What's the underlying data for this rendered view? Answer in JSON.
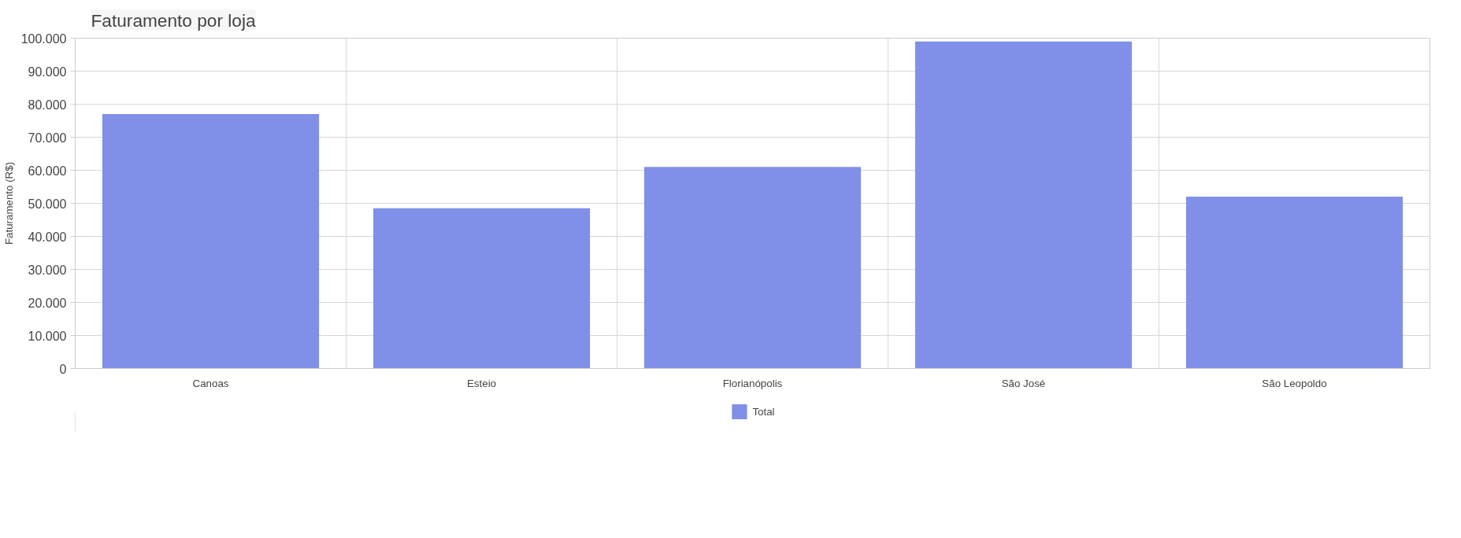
{
  "chart_data": {
    "type": "bar",
    "title": "Faturamento por loja",
    "ylabel": "Faturamento (R$)",
    "categories": [
      "Canoas",
      "Esteio",
      "Florianópolis",
      "São José",
      "São Leopoldo"
    ],
    "series": [
      {
        "name": "Total",
        "color": "#8090e8",
        "values": [
          77000,
          48500,
          61000,
          99000,
          52000
        ]
      }
    ],
    "ylim": [
      0,
      100000
    ],
    "yticks": [
      {
        "value": 0,
        "label": "0"
      },
      {
        "value": 10000,
        "label": "10.000"
      },
      {
        "value": 20000,
        "label": "20.000"
      },
      {
        "value": 30000,
        "label": "30.000"
      },
      {
        "value": 40000,
        "label": "40.000"
      },
      {
        "value": 50000,
        "label": "50.000"
      },
      {
        "value": 60000,
        "label": "60.000"
      },
      {
        "value": 70000,
        "label": "70.000"
      },
      {
        "value": 80000,
        "label": "80.000"
      },
      {
        "value": 90000,
        "label": "90.000"
      },
      {
        "value": 100000,
        "label": "100.000"
      }
    ],
    "grid": true,
    "legend": "bottom"
  }
}
